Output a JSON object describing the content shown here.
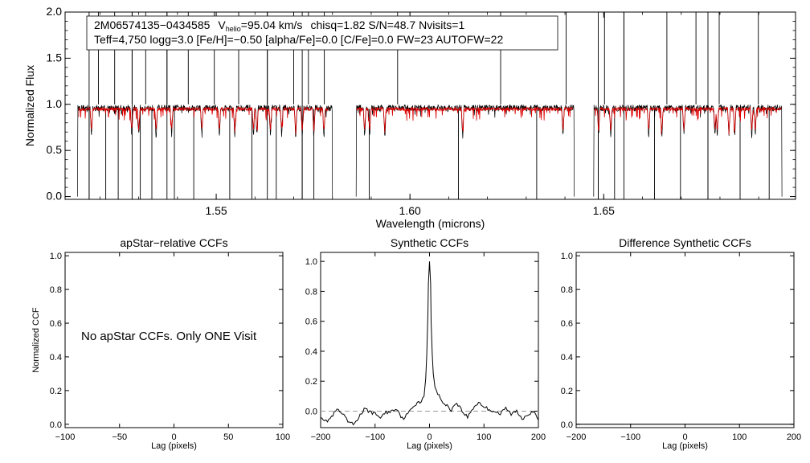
{
  "info": {
    "line1_star": "2M06574135−0434585",
    "line1_v": "V",
    "line1_vsub": "helio",
    "line1_vval": "=95.04 km/s",
    "line1_rest": "chisq=1.82  S/N=48.7  Nvisits=1",
    "line2": "Teff=4,750 logg=3.0 [Fe/H]=−0.50 [alpha/Fe]=0.0 [C/Fe]=0.0 FW=23 AUTOFW=22"
  },
  "message": "No apStar CCFs.  Only ONE Visit",
  "colors": {
    "observed": "#000000",
    "model": "#dd0000",
    "zero_line": "#999999"
  },
  "chart_data": [
    {
      "type": "line",
      "title": "",
      "xlabel": "Wavelength (microns)",
      "ylabel": "Normalized Flux",
      "xlim": [
        1.511,
        1.6995
      ],
      "ylim": [
        -0.03,
        2.0
      ],
      "xticks": [
        1.55,
        1.6,
        1.65
      ],
      "xtick_labels": [
        "1.55",
        "1.60",
        "1.65"
      ],
      "yticks": [
        0.0,
        0.5,
        1.0,
        1.5,
        2.0
      ],
      "ytick_labels": [
        "0.0",
        "0.5",
        "1.0",
        "1.5",
        "2.0"
      ],
      "chips": [
        [
          1.5142,
          1.58
        ],
        [
          1.5861,
          1.6424
        ],
        [
          1.6474,
          1.696
        ]
      ],
      "model_ranges": [
        [
          1.5145,
          1.579
        ],
        [
          1.5863,
          1.642
        ],
        [
          1.6476,
          1.6958
        ]
      ],
      "series": [
        {
          "name": "",
          "continuum": 0.96
        },
        {
          "name": "",
          "continuum": 0.95
        }
      ],
      "telluric_spikes": [
        1.5172,
        1.5196,
        1.5215,
        1.5238,
        1.5247,
        1.5283,
        1.5304,
        1.5318,
        1.5334,
        1.5373,
        1.5392,
        1.5428,
        1.5442,
        1.5495,
        1.5535,
        1.5558,
        1.5592,
        1.5632,
        1.5655,
        1.57,
        1.5722,
        1.5738,
        1.5752,
        1.5779,
        1.5895,
        1.5968,
        1.6125,
        1.6234,
        1.6327,
        1.6403,
        1.6486,
        1.6502,
        1.6528,
        1.6552,
        1.6631,
        1.6663,
        1.6698,
        1.6738,
        1.6769,
        1.6798,
        1.6852,
        1.6899,
        1.6927
      ],
      "deep_absorptions": [
        1.5178,
        1.5282,
        1.53,
        1.5345,
        1.5385,
        1.5463,
        1.5508,
        1.5548,
        1.5596,
        1.5605,
        1.564,
        1.5669,
        1.5705,
        1.5722,
        1.5752,
        1.5778,
        1.5883,
        1.5896,
        1.5935,
        1.6136,
        1.6395,
        1.6487,
        1.6518,
        1.6616,
        1.665,
        1.6707,
        1.6787,
        1.6793,
        1.6823,
        1.6838,
        1.6882,
        1.6891
      ]
    },
    {
      "type": "line",
      "title": "apStar−relative CCFs",
      "xlabel": "Lag (pixels)",
      "ylabel": "Normalized CCF",
      "xlim": [
        -100,
        100
      ],
      "ylim": [
        -0.02,
        1.02
      ],
      "xticks": [
        -100,
        -50,
        0,
        50,
        100
      ],
      "xtick_labels": [
        "−100",
        "−50",
        "0",
        "50",
        "100"
      ],
      "yticks": [
        0.0,
        0.2,
        0.4,
        0.6,
        0.8,
        1.0
      ],
      "ytick_labels": [
        "0.0",
        "0.2",
        "0.4",
        "0.6",
        "0.8",
        "1.0"
      ],
      "series": []
    },
    {
      "type": "line",
      "title": "Synthetic CCFs",
      "xlabel": "Lag (pixels)",
      "ylabel": "",
      "xlim": [
        -200,
        200
      ],
      "ylim": [
        -0.11,
        1.06
      ],
      "xticks": [
        -200,
        -100,
        0,
        100,
        200
      ],
      "xtick_labels": [
        "−200",
        "−100",
        "0",
        "100",
        "200"
      ],
      "yticks": [
        0.0,
        0.2,
        0.4,
        0.6,
        0.8,
        1.0
      ],
      "ytick_labels": [
        "0.0",
        "0.2",
        "0.4",
        "0.6",
        "0.8",
        "1.0"
      ],
      "zero_line": 0.0,
      "series": [
        {
          "name": "",
          "x": [
            -200,
            -190,
            -180,
            -170,
            -160,
            -150,
            -140,
            -130,
            -120,
            -110,
            -100,
            -90,
            -80,
            -70,
            -60,
            -50,
            -40,
            -30,
            -20,
            -15,
            -10,
            -7,
            -5,
            -3,
            -2,
            0,
            2,
            3,
            5,
            7,
            10,
            15,
            20,
            30,
            40,
            50,
            60,
            70,
            80,
            90,
            100,
            110,
            120,
            130,
            140,
            150,
            160,
            170,
            180,
            190,
            200
          ],
          "y": [
            -0.03,
            -0.07,
            -0.04,
            0.01,
            -0.02,
            -0.07,
            -0.09,
            -0.04,
            0.01,
            0.0,
            -0.02,
            -0.04,
            -0.01,
            0.0,
            0.02,
            -0.05,
            -0.02,
            0.03,
            0.07,
            0.06,
            0.1,
            0.22,
            0.38,
            0.65,
            0.85,
            1.0,
            0.85,
            0.6,
            0.38,
            0.25,
            0.16,
            0.12,
            0.08,
            0.04,
            0.01,
            0.06,
            0.0,
            -0.04,
            0.02,
            0.06,
            0.03,
            0.01,
            0.0,
            -0.02,
            0.02,
            -0.02,
            0.0,
            -0.05,
            -0.02,
            0.0,
            -0.06
          ]
        }
      ]
    },
    {
      "type": "line",
      "title": "Difference Synthetic CCFs",
      "xlabel": "Lag (pixels)",
      "ylabel": "",
      "xlim": [
        -200,
        200
      ],
      "ylim": [
        -0.02,
        1.02
      ],
      "xticks": [
        -200,
        -100,
        0,
        100,
        200
      ],
      "xtick_labels": [
        "−200",
        "−100",
        "0",
        "100",
        "200"
      ],
      "yticks": [
        0.0,
        0.2,
        0.4,
        0.6,
        0.8,
        1.0
      ],
      "ytick_labels": [
        "0.0",
        "0.2",
        "0.4",
        "0.6",
        "0.8",
        "1.0"
      ],
      "series": [
        {
          "name": "",
          "x": [
            -200,
            200
          ],
          "y": [
            0.0,
            0.0
          ]
        }
      ]
    }
  ]
}
